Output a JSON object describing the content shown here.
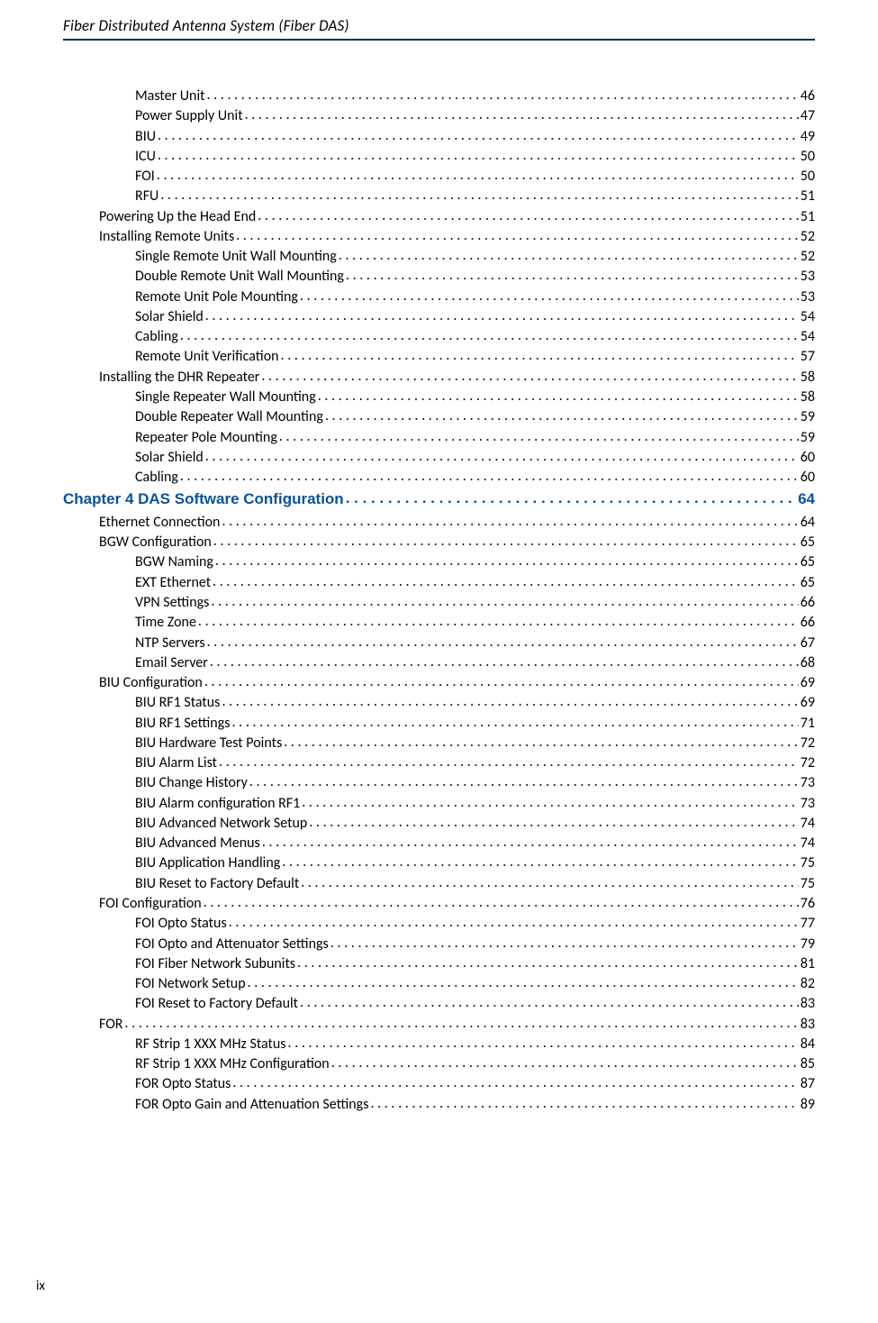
{
  "header": {
    "title": "Fiber Distributed Antenna System (Fiber DAS)"
  },
  "footer": {
    "page_number": "ix"
  },
  "colors": {
    "rule": "#1a2a6c",
    "chapter_link": "#0b5394",
    "text": "#000000",
    "background": "#ffffff"
  },
  "toc": {
    "entries": [
      {
        "level": 2,
        "label": "Master Unit",
        "page": "46",
        "type": "normal"
      },
      {
        "level": 2,
        "label": "Power Supply Unit",
        "page": "47",
        "type": "normal"
      },
      {
        "level": 2,
        "label": "BIU",
        "page": "49",
        "type": "normal"
      },
      {
        "level": 2,
        "label": "ICU",
        "page": "50",
        "type": "normal"
      },
      {
        "level": 2,
        "label": "FOI",
        "page": "50",
        "type": "normal"
      },
      {
        "level": 2,
        "label": "RFU",
        "page": "51",
        "type": "normal"
      },
      {
        "level": 1,
        "label": "Powering Up the Head End",
        "page": "51",
        "type": "normal"
      },
      {
        "level": 1,
        "label": "Installing Remote Units",
        "page": "52",
        "type": "normal"
      },
      {
        "level": 2,
        "label": "Single Remote Unit Wall Mounting",
        "page": "52",
        "type": "normal"
      },
      {
        "level": 2,
        "label": "Double Remote Unit Wall Mounting",
        "page": "53",
        "type": "normal"
      },
      {
        "level": 2,
        "label": "Remote Unit Pole Mounting",
        "page": "53",
        "type": "normal"
      },
      {
        "level": 2,
        "label": "Solar Shield",
        "page": "54",
        "type": "normal"
      },
      {
        "level": 2,
        "label": "Cabling",
        "page": "54",
        "type": "normal"
      },
      {
        "level": 2,
        "label": "Remote Unit Verification",
        "page": "57",
        "type": "normal"
      },
      {
        "level": 1,
        "label": "Installing the DHR Repeater",
        "page": "58",
        "type": "normal"
      },
      {
        "level": 2,
        "label": "Single Repeater Wall Mounting",
        "page": "58",
        "type": "normal"
      },
      {
        "level": 2,
        "label": "Double Repeater Wall Mounting",
        "page": "59",
        "type": "normal"
      },
      {
        "level": 2,
        "label": "Repeater Pole Mounting",
        "page": "59",
        "type": "normal"
      },
      {
        "level": 2,
        "label": "Solar Shield",
        "page": "60",
        "type": "normal"
      },
      {
        "level": 2,
        "label": "Cabling",
        "page": "60",
        "type": "normal"
      },
      {
        "level": 0,
        "label": "Chapter 4  DAS Software Configuration",
        "page": "64",
        "type": "chapter"
      },
      {
        "level": 1,
        "label": "Ethernet Connection",
        "page": "64",
        "type": "normal"
      },
      {
        "level": 1,
        "label": "BGW Configuration",
        "page": "65",
        "type": "normal"
      },
      {
        "level": 2,
        "label": "BGW Naming",
        "page": "65",
        "type": "normal"
      },
      {
        "level": 2,
        "label": "EXT Ethernet",
        "page": "65",
        "type": "normal"
      },
      {
        "level": 2,
        "label": "VPN Settings",
        "page": "66",
        "type": "normal"
      },
      {
        "level": 2,
        "label": "Time Zone",
        "page": "66",
        "type": "normal"
      },
      {
        "level": 2,
        "label": "NTP Servers",
        "page": "67",
        "type": "normal"
      },
      {
        "level": 2,
        "label": "Email Server",
        "page": "68",
        "type": "normal"
      },
      {
        "level": 1,
        "label": "BIU Configuration",
        "page": "69",
        "type": "normal"
      },
      {
        "level": 2,
        "label": "BIU RF1 Status",
        "page": "69",
        "type": "normal"
      },
      {
        "level": 2,
        "label": "BIU RF1 Settings",
        "page": "71",
        "type": "normal"
      },
      {
        "level": 2,
        "label": "BIU Hardware Test Points",
        "page": "72",
        "type": "normal"
      },
      {
        "level": 2,
        "label": "BIU Alarm List",
        "page": "72",
        "type": "normal"
      },
      {
        "level": 2,
        "label": "BIU Change History",
        "page": "73",
        "type": "normal"
      },
      {
        "level": 2,
        "label": "BIU Alarm configuration RF1",
        "page": "73",
        "type": "normal"
      },
      {
        "level": 2,
        "label": "BIU Advanced Network Setup",
        "page": "74",
        "type": "normal"
      },
      {
        "level": 2,
        "label": "BIU Advanced Menus",
        "page": "74",
        "type": "normal"
      },
      {
        "level": 2,
        "label": "BIU Application Handling",
        "page": "75",
        "type": "normal"
      },
      {
        "level": 2,
        "label": "BIU Reset to Factory Default",
        "page": "75",
        "type": "normal"
      },
      {
        "level": 1,
        "label": "FOI Configuration",
        "page": "76",
        "type": "normal"
      },
      {
        "level": 2,
        "label": "FOI Opto Status",
        "page": "77",
        "type": "normal"
      },
      {
        "level": 2,
        "label": "FOI Opto and Attenuator Settings",
        "page": "79",
        "type": "normal"
      },
      {
        "level": 2,
        "label": "FOI Fiber Network Subunits",
        "page": "81",
        "type": "normal"
      },
      {
        "level": 2,
        "label": "FOI Network Setup",
        "page": "82",
        "type": "normal"
      },
      {
        "level": 2,
        "label": "FOI Reset to Factory Default",
        "page": "83",
        "type": "normal"
      },
      {
        "level": 1,
        "label": "FOR",
        "page": "83",
        "type": "normal"
      },
      {
        "level": 2,
        "label": "RF Strip 1 XXX MHz Status",
        "page": "84",
        "type": "normal"
      },
      {
        "level": 2,
        "label": "RF Strip 1 XXX MHz Configuration",
        "page": "85",
        "type": "normal"
      },
      {
        "level": 2,
        "label": "FOR Opto Status",
        "page": "87",
        "type": "normal"
      },
      {
        "level": 2,
        "label": "FOR Opto Gain and Attenuation Settings",
        "page": "89",
        "type": "normal"
      }
    ]
  }
}
